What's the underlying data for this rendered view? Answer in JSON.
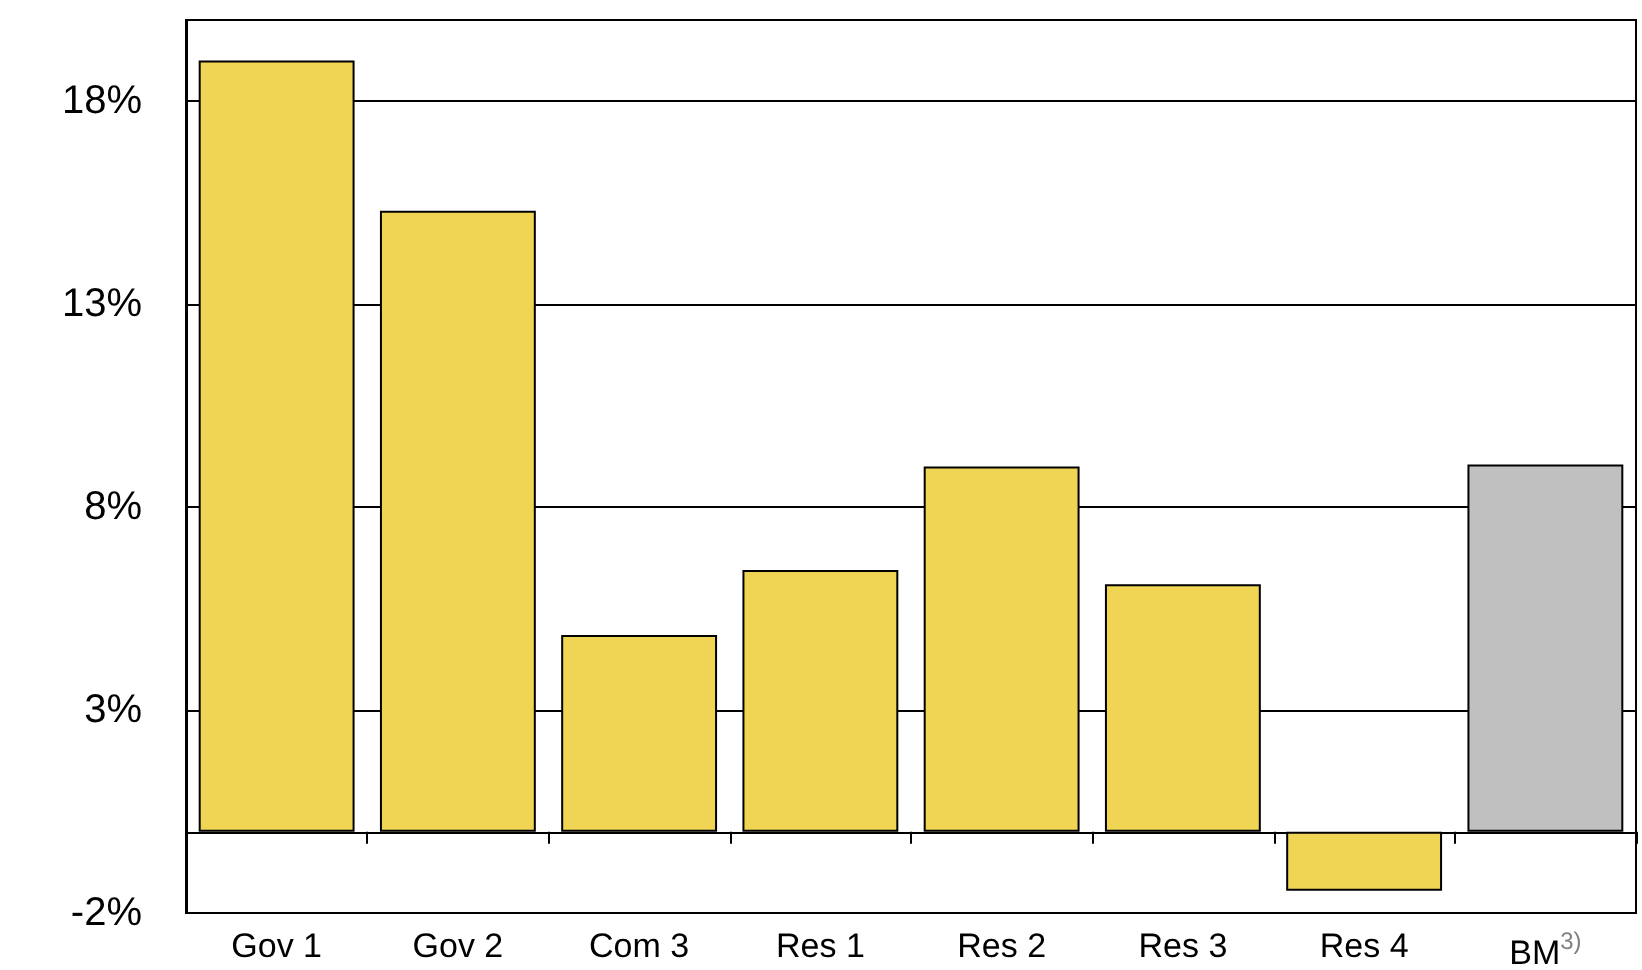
{
  "chart_data": {
    "type": "bar",
    "categories": [
      "Gov 1",
      "Gov 2",
      "Com 3",
      "Res 1",
      "Res 2",
      "Res 3",
      "Res 4",
      "BM$^{3)}$"
    ],
    "values": [
      19.0,
      15.3,
      4.85,
      6.45,
      9.0,
      6.1,
      -1.45,
      9.05
    ],
    "colors": [
      "#f0d555",
      "#f0d555",
      "#f0d555",
      "#f0d555",
      "#f0d555",
      "#f0d555",
      "#f0d555",
      "#c0c0c0"
    ],
    "ylim": [
      -2,
      20
    ],
    "yticks": [
      {
        "value": -2,
        "label": "-2%"
      },
      {
        "value": 3,
        "label": "3%"
      },
      {
        "value": 8,
        "label": "8%"
      },
      {
        "value": 13,
        "label": "13%"
      },
      {
        "value": 18,
        "label": "18%"
      }
    ],
    "grid": "y"
  }
}
